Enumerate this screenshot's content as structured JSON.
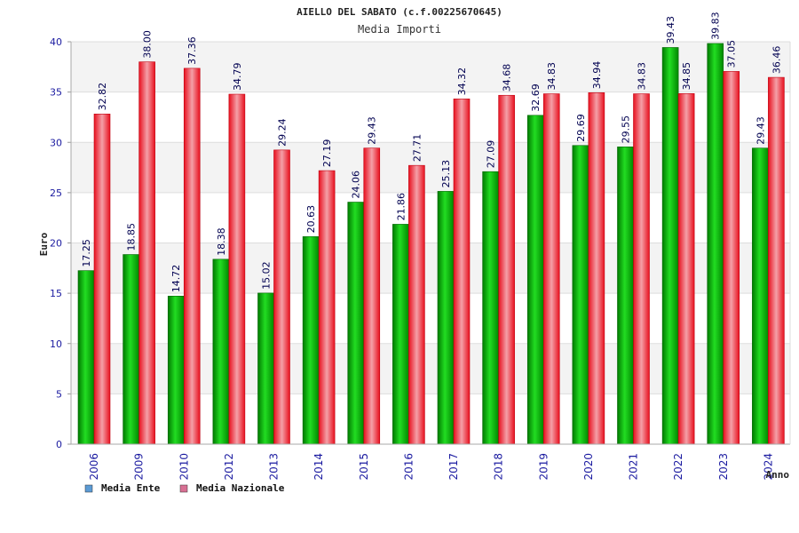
{
  "chart_data": {
    "type": "bar",
    "title": "AIELLO DEL SABATO (c.f.00225670645)",
    "subtitle": "Media Importi",
    "xlabel": "Anno",
    "ylabel": "Euro",
    "ylim": [
      0,
      40
    ],
    "yticks": [
      0,
      5,
      10,
      15,
      20,
      25,
      30,
      35,
      40
    ],
    "grid": true,
    "legend_position": "bottom-left",
    "categories": [
      "2006",
      "2009",
      "2010",
      "2012",
      "2013",
      "2014",
      "2015",
      "2016",
      "2017",
      "2018",
      "2019",
      "2020",
      "2021",
      "2022",
      "2023",
      "2024"
    ],
    "series": [
      {
        "name": "Media Ente",
        "color": "#00b000",
        "legend_color": "#5b9bd5",
        "values": [
          17.25,
          18.85,
          14.72,
          18.38,
          15.02,
          20.63,
          24.06,
          21.86,
          25.13,
          27.09,
          32.69,
          29.69,
          29.55,
          39.43,
          39.83,
          29.43
        ],
        "labels": [
          "17.25",
          "18.85",
          "14.72",
          "18.38",
          "15.02",
          "20.63",
          "24.06",
          "21.86",
          "25.13",
          "27.09",
          "32.69",
          "29.69",
          "29.55",
          "39.43",
          "39.83",
          "29.43"
        ]
      },
      {
        "name": "Media Nazionale",
        "color": "#ee1c2c",
        "legend_color": "#d87093",
        "values": [
          32.82,
          38.0,
          37.36,
          34.79,
          29.24,
          27.19,
          29.43,
          27.71,
          34.32,
          34.68,
          34.83,
          34.94,
          34.83,
          34.85,
          37.05,
          36.46
        ],
        "labels": [
          "32.82",
          "38.00",
          "37.36",
          "34.79",
          "29.24",
          "27.19",
          "29.43",
          "27.71",
          "34.32",
          "34.68",
          "34.83",
          "34.94",
          "34.83",
          "34.85",
          "37.05",
          "36.46"
        ]
      }
    ]
  }
}
